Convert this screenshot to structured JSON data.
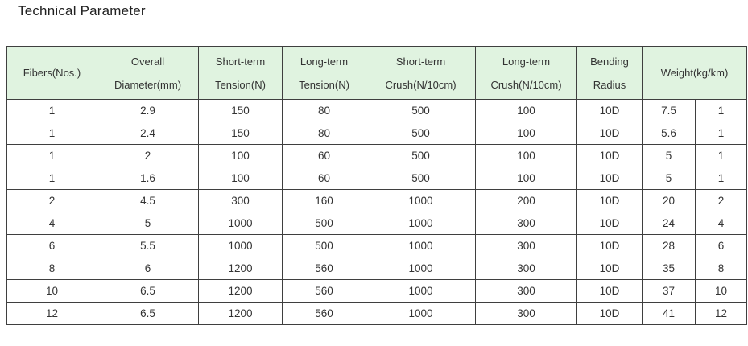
{
  "page": {
    "title": "Technical Parameter"
  },
  "colors": {
    "header_bg": "#e0f3e0",
    "border": "#3f3f3f",
    "text": "#333333",
    "title": "#212121"
  },
  "table": {
    "columns": [
      {
        "label_lines": [
          "Fibers(Nos.)"
        ],
        "colspan": 1
      },
      {
        "label_lines": [
          "Overall",
          "Diameter(mm)"
        ],
        "colspan": 1
      },
      {
        "label_lines": [
          "Short-term",
          "Tension(N)"
        ],
        "colspan": 1
      },
      {
        "label_lines": [
          "Long-term",
          "Tension(N)"
        ],
        "colspan": 1
      },
      {
        "label_lines": [
          "Short-term",
          "Crush(N/10cm)"
        ],
        "colspan": 1
      },
      {
        "label_lines": [
          "Long-term",
          "Crush(N/10cm)"
        ],
        "colspan": 1
      },
      {
        "label_lines": [
          "Bending",
          "Radius"
        ],
        "colspan": 1
      },
      {
        "label_lines": [
          "Weight(kg/km)"
        ],
        "colspan": 2
      }
    ],
    "rows": [
      [
        "1",
        "2.9",
        "150",
        "80",
        "500",
        "100",
        "10D",
        "7.5",
        "1"
      ],
      [
        "1",
        "2.4",
        "150",
        "80",
        "500",
        "100",
        "10D",
        "5.6",
        "1"
      ],
      [
        "1",
        "2",
        "100",
        "60",
        "500",
        "100",
        "10D",
        "5",
        "1"
      ],
      [
        "1",
        "1.6",
        "100",
        "60",
        "500",
        "100",
        "10D",
        "5",
        "1"
      ],
      [
        "2",
        "4.5",
        "300",
        "160",
        "1000",
        "200",
        "10D",
        "20",
        "2"
      ],
      [
        "4",
        "5",
        "1000",
        "500",
        "1000",
        "300",
        "10D",
        "24",
        "4"
      ],
      [
        "6",
        "5.5",
        "1000",
        "500",
        "1000",
        "300",
        "10D",
        "28",
        "6"
      ],
      [
        "8",
        "6",
        "1200",
        "560",
        "1000",
        "300",
        "10D",
        "35",
        "8"
      ],
      [
        "10",
        "6.5",
        "1200",
        "560",
        "1000",
        "300",
        "10D",
        "37",
        "10"
      ],
      [
        "12",
        "6.5",
        "1200",
        "560",
        "1000",
        "300",
        "10D",
        "41",
        "12"
      ]
    ]
  }
}
